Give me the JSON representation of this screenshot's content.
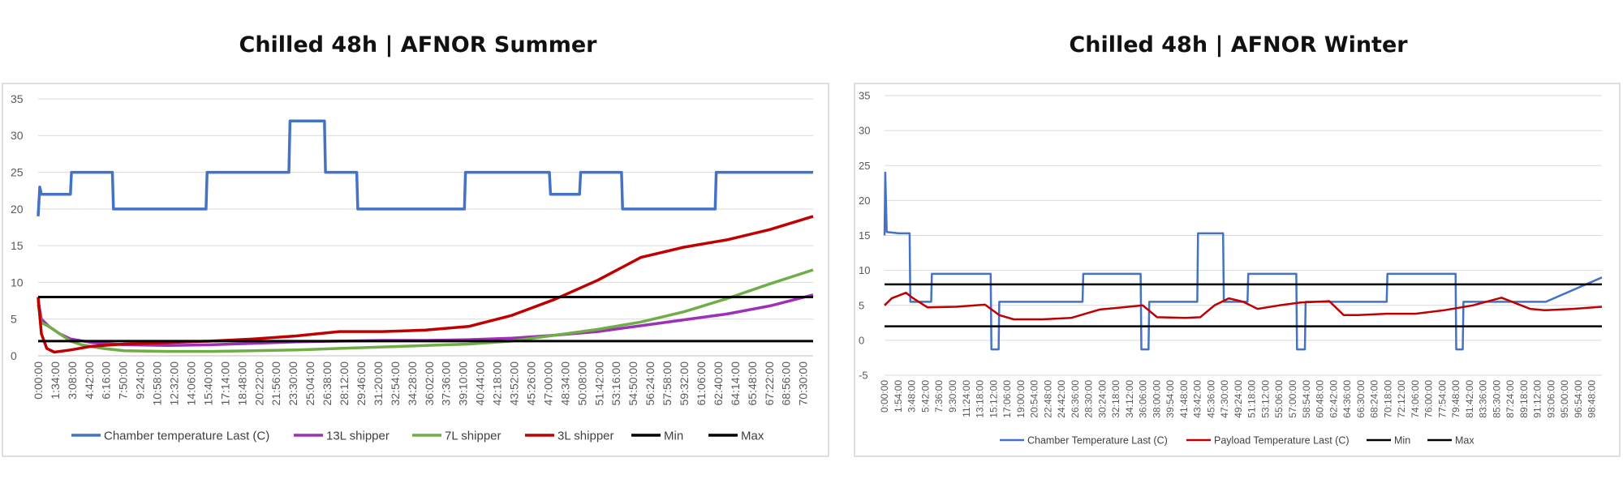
{
  "chart_data": [
    {
      "type": "line",
      "title": "Chilled 48h | AFNOR Summer",
      "xlabel": "",
      "ylabel": "",
      "ylim": [
        0,
        35
      ],
      "y_ticks": [
        0,
        5,
        10,
        15,
        20,
        25,
        30,
        35
      ],
      "x_range_hours": [
        0,
        72
      ],
      "x_tick_labels": [
        "0:00:00",
        "1:34:00",
        "3:08:00",
        "4:42:00",
        "6:16:00",
        "7:50:00",
        "9:24:00",
        "10:58:00",
        "12:32:00",
        "14:06:00",
        "15:40:00",
        "17:14:00",
        "18:48:00",
        "20:22:00",
        "21:56:00",
        "23:30:00",
        "25:04:00",
        "26:38:00",
        "28:12:00",
        "29:46:00",
        "31:20:00",
        "32:54:00",
        "34:28:00",
        "36:02:00",
        "37:36:00",
        "39:10:00",
        "40:44:00",
        "42:18:00",
        "43:52:00",
        "45:26:00",
        "47:00:00",
        "48:34:00",
        "50:08:00",
        "51:42:00",
        "53:16:00",
        "54:50:00",
        "56:24:00",
        "57:58:00",
        "59:32:00",
        "61:06:00",
        "62:40:00",
        "64:14:00",
        "65:48:00",
        "67:22:00",
        "68:56:00",
        "70:30:00"
      ],
      "legend_position": "bottom",
      "grid": true,
      "series": [
        {
          "name": "Chamber temperature Last (C)",
          "color": "#4472c4",
          "x_hours": [
            0,
            0.15,
            0.3,
            3,
            3.1,
            6.9,
            7.0,
            15.6,
            15.7,
            23.3,
            23.4,
            26.6,
            26.7,
            29.6,
            29.7,
            39.6,
            39.7,
            47.5,
            47.6,
            50.3,
            50.4,
            54.2,
            54.3,
            62.9,
            63.0,
            72
          ],
          "values": [
            19,
            23,
            22,
            22,
            25,
            25,
            20,
            20,
            25,
            25,
            32,
            32,
            25,
            25,
            20,
            20,
            25,
            25,
            22,
            22,
            25,
            25,
            20,
            20,
            25,
            25
          ]
        },
        {
          "name": "13L shipper",
          "color": "#9e2fb7",
          "x_hours": [
            0,
            0.3,
            1,
            2,
            3,
            5,
            8,
            12,
            16,
            20,
            24,
            28,
            32,
            36,
            40,
            44,
            48,
            52,
            56,
            60,
            64,
            68,
            72
          ],
          "values": [
            7.5,
            5,
            4,
            3,
            2.3,
            1.8,
            1.5,
            1.4,
            1.5,
            1.7,
            1.9,
            2.0,
            2.1,
            2.1,
            2.2,
            2.4,
            2.8,
            3.3,
            4.1,
            4.9,
            5.7,
            6.8,
            8.3
          ]
        },
        {
          "name": "7L shipper",
          "color": "#70ad47",
          "x_hours": [
            0,
            0.3,
            1,
            2,
            3,
            4,
            6,
            8,
            12,
            16,
            20,
            24,
            28,
            32,
            36,
            40,
            44,
            48,
            52,
            56,
            60,
            64,
            68,
            72
          ],
          "values": [
            7,
            4.5,
            4,
            3,
            2,
            1.5,
            1,
            0.7,
            0.6,
            0.6,
            0.7,
            0.8,
            1.0,
            1.2,
            1.4,
            1.6,
            2.0,
            2.8,
            3.6,
            4.6,
            6,
            7.8,
            9.8,
            11.7
          ]
        },
        {
          "name": "3L shipper",
          "color": "#c00000",
          "x_hours": [
            0,
            0.3,
            0.8,
            1.5,
            3,
            5,
            8,
            12,
            16,
            20,
            24,
            28,
            32,
            36,
            40,
            44,
            48,
            52,
            56,
            60,
            64,
            68,
            72
          ],
          "values": [
            8,
            3,
            1,
            0.5,
            0.8,
            1.3,
            1.6,
            1.8,
            2.0,
            2.3,
            2.7,
            3.3,
            3.3,
            3.5,
            4.0,
            5.5,
            7.7,
            10.3,
            13.4,
            14.8,
            15.8,
            17.2,
            19.0
          ]
        },
        {
          "name": "Min",
          "color": "#000000",
          "x_hours": [
            0,
            72
          ],
          "values": [
            2,
            2
          ]
        },
        {
          "name": "Max",
          "color": "#000000",
          "x_hours": [
            0,
            72
          ],
          "values": [
            8,
            8
          ]
        }
      ]
    },
    {
      "type": "line",
      "title": "Chilled 48h | AFNOR Winter",
      "xlabel": "",
      "ylabel": "",
      "ylim": [
        -5,
        35
      ],
      "y_ticks": [
        -5,
        0,
        5,
        10,
        15,
        20,
        25,
        30,
        35
      ],
      "x_range_hours": [
        0,
        100
      ],
      "x_tick_labels": [
        "0:00:00",
        "1:54:00",
        "3:48:00",
        "5:42:00",
        "7:36:00",
        "9:30:00",
        "11:24:00",
        "13:18:00",
        "15:12:00",
        "17:06:00",
        "19:00:00",
        "20:54:00",
        "22:48:00",
        "24:42:00",
        "26:36:00",
        "28:30:00",
        "30:24:00",
        "32:18:00",
        "34:12:00",
        "36:06:00",
        "38:00:00",
        "39:54:00",
        "41:48:00",
        "43:42:00",
        "45:36:00",
        "47:30:00",
        "49:24:00",
        "51:18:00",
        "53:12:00",
        "55:06:00",
        "57:00:00",
        "58:54:00",
        "60:48:00",
        "62:42:00",
        "64:36:00",
        "66:30:00",
        "68:24:00",
        "70:18:00",
        "72:12:00",
        "74:06:00",
        "76:00:00",
        "77:54:00",
        "79:48:00",
        "81:42:00",
        "83:36:00",
        "85:30:00",
        "87:24:00",
        "89:18:00",
        "91:12:00",
        "93:06:00",
        "95:00:00",
        "96:54:00",
        "98:48:00"
      ],
      "legend_position": "bottom",
      "grid": true,
      "series": [
        {
          "name": "Chamber Temperature Last (C)",
          "color": "#4472c4",
          "x_hours": [
            0,
            0.1,
            0.3,
            2,
            3.5,
            3.6,
            6.5,
            6.6,
            14.8,
            14.9,
            15.9,
            16.0,
            27.6,
            27.7,
            35.7,
            35.8,
            36.8,
            36.9,
            43.6,
            43.7,
            47.2,
            47.3,
            50.6,
            50.7,
            57.4,
            57.5,
            58.6,
            58.7,
            70.0,
            70.1,
            79.6,
            79.7,
            80.6,
            80.7,
            89.8,
            89.9,
            92.1,
            92.2,
            100
          ],
          "values": [
            15,
            24,
            15.5,
            15.3,
            15.3,
            5.5,
            5.5,
            9.5,
            9.5,
            -1.3,
            -1.3,
            5.5,
            5.5,
            9.5,
            9.5,
            -1.3,
            -1.3,
            5.5,
            5.5,
            15.3,
            15.3,
            5.5,
            5.5,
            9.5,
            9.5,
            -1.3,
            -1.3,
            5.5,
            5.5,
            9.5,
            9.5,
            -1.3,
            -1.3,
            5.5,
            5.5,
            5.5,
            5.5,
            5.5,
            9
          ]
        },
        {
          "name": "Payload Temperature Last (C)",
          "color": "#c00000",
          "x_hours": [
            0,
            1,
            3,
            4,
            6,
            10,
            14,
            16,
            18,
            22,
            26,
            30,
            32,
            34,
            36,
            38,
            42,
            44,
            46,
            48,
            50,
            52,
            55,
            58,
            62,
            64,
            66,
            70,
            74,
            78,
            82,
            86,
            90,
            92,
            96,
            100
          ],
          "values": [
            5,
            6,
            6.8,
            6,
            4.7,
            4.8,
            5.1,
            3.6,
            3.0,
            3.0,
            3.2,
            4.4,
            4.6,
            4.8,
            5,
            3.3,
            3.2,
            3.3,
            5,
            6,
            5.5,
            4.5,
            5,
            5.4,
            5.6,
            3.6,
            3.6,
            3.8,
            3.8,
            4.3,
            5,
            6.1,
            4.5,
            4.3,
            4.5,
            4.8
          ]
        },
        {
          "name": "Min",
          "color": "#000000",
          "x_hours": [
            0,
            100
          ],
          "values": [
            2,
            2
          ]
        },
        {
          "name": "Max",
          "color": "#000000",
          "x_hours": [
            0,
            100
          ],
          "values": [
            8,
            8
          ]
        }
      ]
    }
  ]
}
